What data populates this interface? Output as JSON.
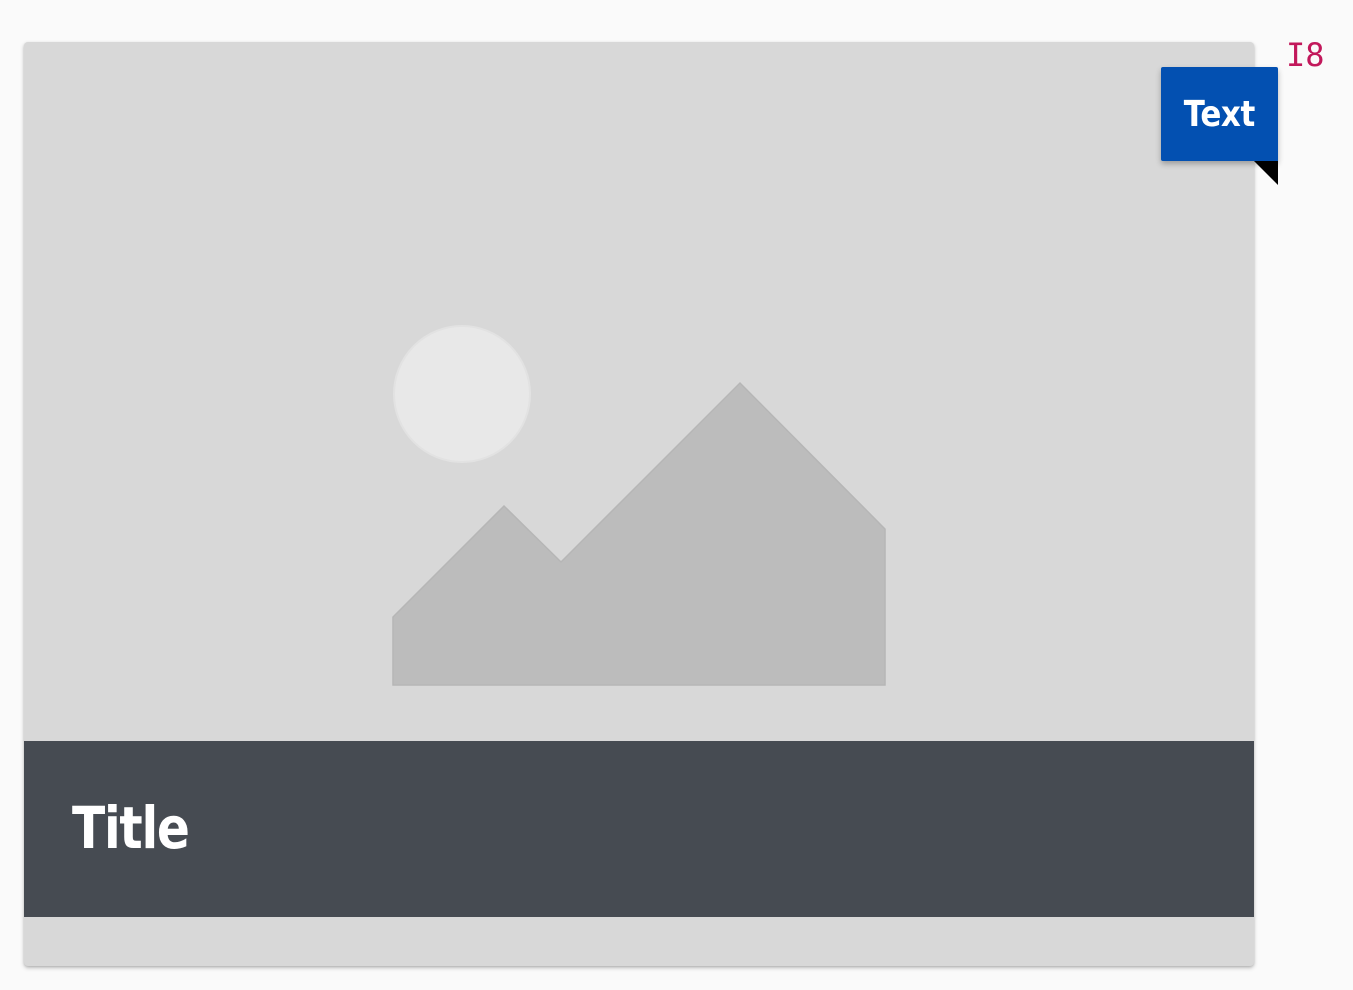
{
  "card": {
    "title": "Title",
    "image_placeholder": "image-placeholder-icon"
  },
  "tag": {
    "label": "Text"
  },
  "corner_indicator": {
    "label": "I8"
  },
  "colors": {
    "page_background": "#fafafa",
    "card_background": "#d8d8d8",
    "title_bar": "#464b52",
    "tag_background": "#0350b1",
    "tag_fold": "#000000",
    "indicator": "#c2185b",
    "placeholder_sun": "#e8e8e8",
    "placeholder_mountains": "#bcbcbc"
  }
}
